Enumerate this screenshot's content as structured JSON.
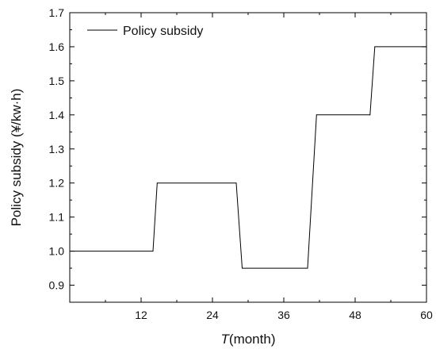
{
  "chart_data": {
    "type": "line",
    "title": "",
    "xlabel": {
      "italic_part": "T",
      "rest": "(month)"
    },
    "ylabel": "Policy subsidy (¥/kw·h)",
    "xlim": [
      0,
      60
    ],
    "ylim": [
      0.85,
      1.7
    ],
    "xticks": [
      12,
      24,
      36,
      48,
      60
    ],
    "yticks": [
      0.9,
      1.0,
      1.1,
      1.2,
      1.3,
      1.4,
      1.5,
      1.6,
      1.7
    ],
    "xtick_labels": [
      "12",
      "24",
      "36",
      "48",
      "60"
    ],
    "ytick_labels": [
      "0.9",
      "1.0",
      "1.1",
      "1.2",
      "1.3",
      "1.4",
      "1.5",
      "1.6",
      "1.7"
    ],
    "grid": false,
    "legend_position": "top-left",
    "series": [
      {
        "name": "Policy subsidy",
        "color": "#000000",
        "x": [
          0,
          14,
          14.7,
          28,
          29,
          40,
          41.5,
          50.5,
          51.3,
          60
        ],
        "y": [
          1.0,
          1.0,
          1.2,
          1.2,
          0.95,
          0.95,
          1.4,
          1.4,
          1.6,
          1.6
        ]
      }
    ]
  }
}
